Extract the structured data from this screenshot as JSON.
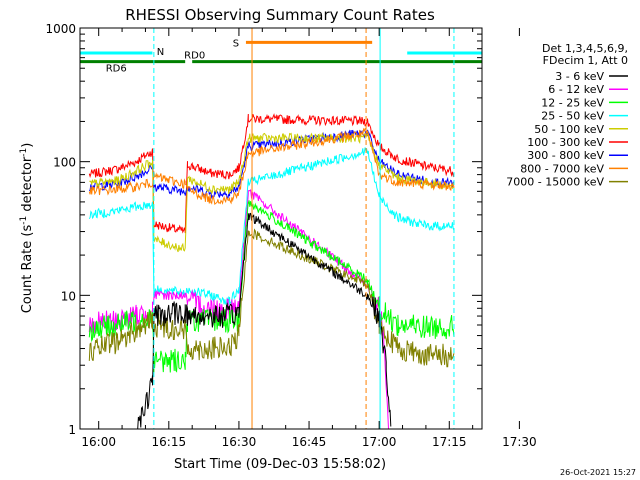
{
  "chart_data": {
    "type": "line",
    "title": "RHESSI Observing Summary Count Rates",
    "xlabel": "Start Time (09-Dec-03 15:58:02)",
    "ylabel_main": "Count Rate (s",
    "ylabel_sup1": "-1",
    "ylabel_mid": " detector",
    "ylabel_sup2": "-1",
    "ylabel_end": ")",
    "yscale": "log",
    "xlim_min": [
      -2,
      84
    ],
    "ylim": [
      1,
      1000
    ],
    "x_tick_minutes": [
      2,
      17,
      32,
      47,
      62,
      77,
      92
    ],
    "x_tick_labels": [
      "16:00",
      "16:15",
      "16:30",
      "16:45",
      "17:00",
      "17:15",
      "17:30"
    ],
    "y_ticks": [
      1,
      10,
      100,
      1000
    ],
    "y_tick_labels": [
      "1",
      "10",
      "100",
      "1000"
    ],
    "legend": {
      "header1": "Det 1,3,4,5,6,9,",
      "header2": "FDecim 1, Att 0",
      "entries": [
        {
          "label": "3 - 6 keV",
          "color": "#000000"
        },
        {
          "label": "6 - 12 keV",
          "color": "#ff00ff"
        },
        {
          "label": "12 - 25 keV",
          "color": "#00ff00"
        },
        {
          "label": "25 - 50 keV",
          "color": "#00ffff"
        },
        {
          "label": "50 - 100 keV",
          "color": "#cccc00"
        },
        {
          "label": "100 - 300 keV",
          "color": "#ff0000"
        },
        {
          "label": "300 - 800 keV",
          "color": "#0000ff"
        },
        {
          "label": "800 - 7000 keV",
          "color": "#ff8000"
        },
        {
          "label": "7000 - 15000 keV",
          "color": "#808000"
        }
      ]
    },
    "flags": [
      {
        "label": "N",
        "color": "#00ffff",
        "segments": [
          [
            -2,
            13.5
          ],
          [
            68,
            84
          ]
        ],
        "level": 650
      },
      {
        "label": "S",
        "color": "#ff8000",
        "segments": [
          [
            33.5,
            60.5
          ]
        ],
        "level": 780
      },
      {
        "label": "RD0",
        "color": "#008000",
        "segments": [
          [
            -2,
            20.5
          ],
          [
            22,
            84
          ]
        ],
        "level": 560
      }
    ],
    "rd_label": "RD6",
    "vlines": [
      {
        "minute": 13.8,
        "color": "#00ffff",
        "style": "dashed"
      },
      {
        "minute": 34.8,
        "color": "#ff8000",
        "style": "solid"
      },
      {
        "minute": 59.2,
        "color": "#ff8000",
        "style": "dashed"
      },
      {
        "minute": 62.2,
        "color": "#00ffff",
        "style": "solid"
      },
      {
        "minute": 78.0,
        "color": "#00ffff",
        "style": "dashed"
      }
    ],
    "series": [
      {
        "name": "100 - 300 keV",
        "color": "#ff0000",
        "points": [
          [
            0,
            80
          ],
          [
            6,
            88
          ],
          [
            10,
            100
          ],
          [
            13.5,
            120
          ],
          [
            13.8,
            34
          ],
          [
            20.5,
            30
          ],
          [
            21,
            95
          ],
          [
            26,
            82
          ],
          [
            30,
            80
          ],
          [
            32,
            90
          ],
          [
            34,
            210
          ],
          [
            59.5,
            200
          ],
          [
            62,
            130
          ],
          [
            66,
            105
          ],
          [
            72,
            92
          ],
          [
            78,
            85
          ]
        ]
      },
      {
        "name": "300 - 800 keV",
        "color": "#0000ff",
        "points": [
          [
            0,
            65
          ],
          [
            6,
            68
          ],
          [
            10,
            78
          ],
          [
            13.5,
            90
          ],
          [
            13.8,
            65
          ],
          [
            20.5,
            60
          ],
          [
            21,
            65
          ],
          [
            26,
            58
          ],
          [
            30,
            58
          ],
          [
            32,
            65
          ],
          [
            34,
            130
          ],
          [
            59.5,
            165
          ],
          [
            62,
            100
          ],
          [
            66,
            80
          ],
          [
            72,
            72
          ],
          [
            78,
            68
          ]
        ]
      },
      {
        "name": "50 - 100 keV",
        "color": "#cccc00",
        "points": [
          [
            0,
            68
          ],
          [
            6,
            72
          ],
          [
            10,
            85
          ],
          [
            13.5,
            100
          ],
          [
            13.8,
            26
          ],
          [
            20.5,
            22
          ],
          [
            21,
            75
          ],
          [
            26,
            63
          ],
          [
            30,
            62
          ],
          [
            32,
            70
          ],
          [
            34,
            150
          ],
          [
            59.5,
            150
          ],
          [
            62,
            95
          ],
          [
            66,
            75
          ],
          [
            72,
            70
          ],
          [
            78,
            65
          ]
        ]
      },
      {
        "name": "800 - 7000 keV",
        "color": "#ff8000",
        "points": [
          [
            0,
            60
          ],
          [
            6,
            62
          ],
          [
            10,
            65
          ],
          [
            13.5,
            70
          ],
          [
            13.8,
            78
          ],
          [
            20.5,
            68
          ],
          [
            21,
            62
          ],
          [
            26,
            52
          ],
          [
            30,
            52
          ],
          [
            32,
            58
          ],
          [
            34,
            115
          ],
          [
            59.5,
            165
          ],
          [
            62,
            80
          ],
          [
            66,
            70
          ],
          [
            72,
            68
          ],
          [
            78,
            65
          ]
        ]
      },
      {
        "name": "25 - 50 keV",
        "color": "#00ffff",
        "points": [
          [
            0,
            40
          ],
          [
            6,
            43
          ],
          [
            10,
            46
          ],
          [
            13.5,
            48
          ],
          [
            13.8,
            11
          ],
          [
            20.5,
            10.5
          ],
          [
            21,
            11
          ],
          [
            26,
            10
          ],
          [
            30,
            9
          ],
          [
            32,
            11
          ],
          [
            34,
            70
          ],
          [
            59.5,
            120
          ],
          [
            62,
            55
          ],
          [
            66,
            38
          ],
          [
            72,
            33
          ],
          [
            78,
            33
          ]
        ]
      },
      {
        "name": "6 - 12 keV",
        "color": "#ff00ff",
        "points": [
          [
            0,
            6
          ],
          [
            6,
            6.5
          ],
          [
            10,
            7
          ],
          [
            13.5,
            7.5
          ],
          [
            13.8,
            10
          ],
          [
            20.5,
            10
          ],
          [
            21,
            9
          ],
          [
            26,
            8
          ],
          [
            30,
            8
          ],
          [
            32,
            8.5
          ],
          [
            34,
            60
          ],
          [
            59.5,
            12
          ],
          [
            62,
            8
          ],
          [
            63,
            5
          ],
          [
            64,
            1
          ]
        ]
      },
      {
        "name": "12 - 25 keV",
        "color": "#00ff00",
        "points": [
          [
            0,
            5.5
          ],
          [
            6,
            6
          ],
          [
            10,
            6.5
          ],
          [
            13.5,
            7
          ],
          [
            13.8,
            3.2
          ],
          [
            20.5,
            3.3
          ],
          [
            21,
            6.5
          ],
          [
            26,
            6.5
          ],
          [
            30,
            6.5
          ],
          [
            32,
            6.5
          ],
          [
            34,
            50
          ],
          [
            59.5,
            13
          ],
          [
            62,
            8
          ],
          [
            66,
            6
          ],
          [
            72,
            5.8
          ],
          [
            78,
            5.8
          ]
        ]
      },
      {
        "name": "7000 - 15000 keV",
        "color": "#808000",
        "points": [
          [
            0,
            3.8
          ],
          [
            6,
            4.5
          ],
          [
            10,
            5.5
          ],
          [
            13.5,
            6.5
          ],
          [
            13.8,
            6
          ],
          [
            20.5,
            5.5
          ],
          [
            21,
            4
          ],
          [
            26,
            4
          ],
          [
            30,
            4
          ],
          [
            32,
            5
          ],
          [
            34,
            30
          ],
          [
            59.5,
            12
          ],
          [
            62,
            6
          ],
          [
            66,
            4
          ],
          [
            72,
            3.6
          ],
          [
            78,
            3.5
          ]
        ]
      },
      {
        "name": "3 - 6 keV",
        "color": "#000000",
        "points": [
          [
            10,
            1
          ],
          [
            12,
            1.5
          ],
          [
            13.5,
            2.2
          ],
          [
            13.8,
            7
          ],
          [
            20.5,
            7.5
          ],
          [
            21,
            7
          ],
          [
            26,
            7
          ],
          [
            30,
            7
          ],
          [
            32,
            7.5
          ],
          [
            34,
            40
          ],
          [
            59.5,
            10
          ],
          [
            62,
            7
          ],
          [
            63.5,
            3
          ],
          [
            64.5,
            1
          ]
        ]
      }
    ]
  },
  "footer_date": "26-Oct-2021 15:27"
}
